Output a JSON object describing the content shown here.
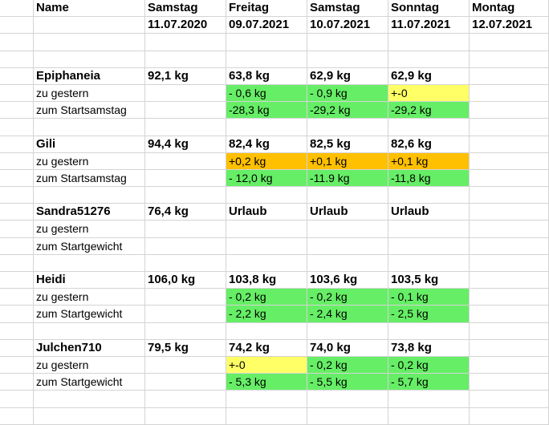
{
  "header": {
    "name_label": "Name",
    "columns": [
      {
        "day": "Samstag",
        "date": "11.07.2020"
      },
      {
        "day": "Freitag",
        "date": "09.07.2021"
      },
      {
        "day": "Samstag",
        "date": "10.07.2021"
      },
      {
        "day": "Sonntag",
        "date": "11.07.2021"
      },
      {
        "day": "Montag",
        "date": "12.07.2021"
      }
    ]
  },
  "people": [
    {
      "name": "Epiphaneia",
      "start": "92,1 kg",
      "values": [
        "63,8 kg",
        "62,9 kg",
        "62,9 kg",
        ""
      ],
      "row2_label": "zu gestern",
      "row2": [
        "- 0,6 kg",
        "- 0,9 kg",
        "+-0",
        ""
      ],
      "row2_colors": [
        "green",
        "green",
        "yellow",
        ""
      ],
      "row3_label": "zum Startsamstag",
      "row3": [
        "-28,3 kg",
        "-29,2 kg",
        "-29,2 kg",
        ""
      ],
      "row3_colors": [
        "green",
        "green",
        "green",
        ""
      ]
    },
    {
      "name": "Gili",
      "start": "94,4 kg",
      "values": [
        "82,4 kg",
        "82,5 kg",
        "82,6 kg",
        ""
      ],
      "row2_label": "zu gestern",
      "row2": [
        "+0,2 kg",
        "+0,1 kg",
        "+0,1 kg",
        ""
      ],
      "row2_colors": [
        "orange",
        "orange",
        "orange",
        ""
      ],
      "row3_label": "zum Startsamstag",
      "row3": [
        "- 12,0 kg",
        "-11.9 kg",
        "-11,8 kg",
        ""
      ],
      "row3_colors": [
        "green",
        "green",
        "green",
        ""
      ]
    },
    {
      "name": "Sandra51276",
      "start": "76,4 kg",
      "values": [
        "Urlaub",
        "Urlaub",
        "Urlaub",
        ""
      ],
      "row2_label": "zu gestern",
      "row2": [
        "",
        "",
        "",
        ""
      ],
      "row2_colors": [
        "",
        "",
        "",
        ""
      ],
      "row3_label": "zum Startgewicht",
      "row3": [
        "",
        "",
        "",
        ""
      ],
      "row3_colors": [
        "",
        "",
        "",
        ""
      ]
    },
    {
      "name": "Heidi",
      "start": "106,0 kg",
      "values": [
        "103,8 kg",
        "103,6 kg",
        "103,5 kg",
        ""
      ],
      "row2_label": "zu gestern",
      "row2": [
        "- 0,2 kg",
        "- 0,2 kg",
        "- 0,1 kg",
        ""
      ],
      "row2_colors": [
        "green",
        "green",
        "green",
        ""
      ],
      "row3_label": "zum Startgewicht",
      "row3": [
        "- 2,2 kg",
        "- 2,4 kg",
        "- 2,5 kg",
        ""
      ],
      "row3_colors": [
        "green",
        "green",
        "green",
        ""
      ]
    },
    {
      "name": "Julchen710",
      "start": "79,5 kg",
      "values": [
        "74,2 kg",
        "74,0 kg",
        "73,8 kg",
        ""
      ],
      "row2_label": "zu gestern",
      "row2": [
        "+-0",
        "- 0,2 kg",
        "- 0,2 kg",
        ""
      ],
      "row2_colors": [
        "yellow",
        "green",
        "green",
        ""
      ],
      "row3_label": "zum Startgewicht",
      "row3": [
        "- 5,3 kg",
        "- 5,5 kg",
        "- 5,7 kg",
        ""
      ],
      "row3_colors": [
        "green",
        "green",
        "green",
        ""
      ]
    }
  ]
}
